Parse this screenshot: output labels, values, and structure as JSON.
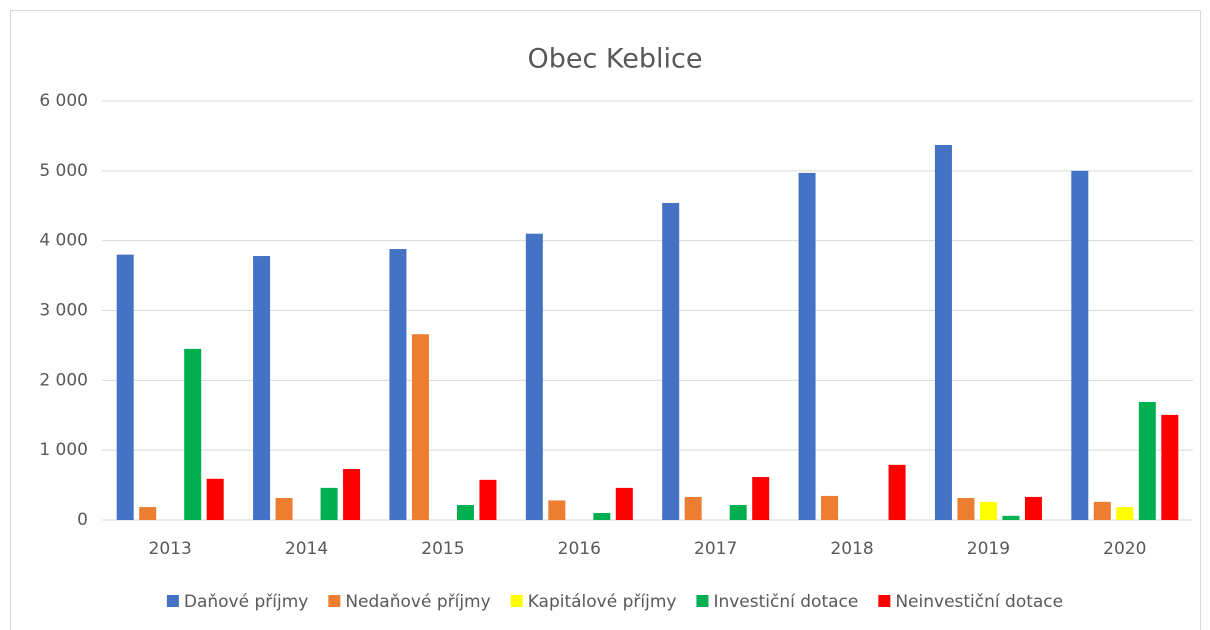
{
  "chart_data": {
    "type": "bar",
    "title": "Obec Keblice",
    "categories": [
      "2013",
      "2014",
      "2015",
      "2016",
      "2017",
      "2018",
      "2019",
      "2020"
    ],
    "series": [
      {
        "name": "Daňové příjmy",
        "color": "#4472c4",
        "values": [
          3800,
          3780,
          3880,
          4100,
          4540,
          4970,
          5370,
          5000
        ]
      },
      {
        "name": "Nedaňové příjmy",
        "color": "#ed7d31",
        "values": [
          185,
          315,
          2660,
          280,
          330,
          345,
          315,
          260
        ]
      },
      {
        "name": "Kapitálové příjmy",
        "color": "#ffff00",
        "values": [
          0,
          0,
          0,
          0,
          0,
          0,
          260,
          185
        ]
      },
      {
        "name": "Investiční dotace",
        "color": "#00b050",
        "values": [
          2450,
          460,
          215,
          100,
          215,
          0,
          60,
          1690
        ]
      },
      {
        "name": "Neinvestiční dotace",
        "color": "#ff0000",
        "values": [
          590,
          730,
          575,
          460,
          615,
          790,
          330,
          1505
        ]
      }
    ],
    "ylim": [
      0,
      6000
    ],
    "yticks": [
      0,
      {
        "value": 1000,
        "label": "1 000"
      },
      {
        "value": 2000,
        "label": "2 000"
      },
      {
        "value": 3000,
        "label": "3 000"
      },
      {
        "value": 4000,
        "label": "4 000"
      },
      {
        "value": 5000,
        "label": "5 000"
      },
      {
        "value": 6000,
        "label": "6 000"
      }
    ],
    "grid": true,
    "legend": "bottom"
  }
}
